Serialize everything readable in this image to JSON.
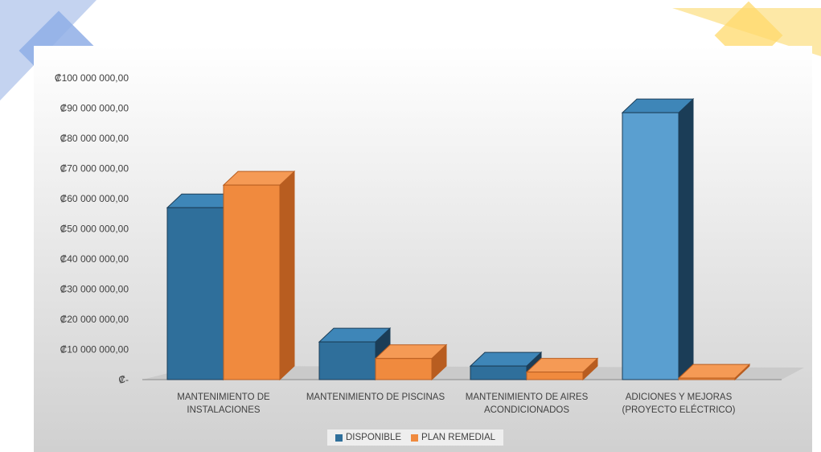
{
  "colors": {
    "disponible_front": "#2f6f9b",
    "disponible_side": "#1b3d57",
    "disponible_top": "#3e86b8",
    "disponible_tall_front": "#5a9fd0",
    "plan_front": "#f08a3e",
    "plan_side": "#b85d20",
    "plan_top": "#f59a55",
    "floor": "#c4c4c4",
    "axis_text": "#404040"
  },
  "chart_data": {
    "type": "bar",
    "title": "",
    "xlabel": "",
    "ylabel": "",
    "ylim": [
      0,
      100000000
    ],
    "y_ticks": [
      0,
      10000000,
      20000000,
      30000000,
      40000000,
      50000000,
      60000000,
      70000000,
      80000000,
      90000000,
      100000000
    ],
    "y_tick_labels": [
      "₡-",
      "₡10 000 000,00",
      "₡20 000 000,00",
      "₡30 000 000,00",
      "₡40 000 000,00",
      "₡50 000 000,00",
      "₡60 000 000,00",
      "₡70 000 000,00",
      "₡80 000 000,00",
      "₡90 000 000,00",
      "₡100 000 000,00"
    ],
    "categories": [
      [
        "MANTENIMIENTO DE",
        "INSTALACIONES"
      ],
      [
        "MANTENIMIENTO DE PISCINAS"
      ],
      [
        "MANTENIMIENTO DE AIRES",
        "ACONDICIONADOS"
      ],
      [
        "ADICIONES Y MEJORAS",
        "(PROYECTO ELÉCTRICO)"
      ]
    ],
    "series": [
      {
        "name": "DISPONIBLE",
        "values": [
          57000000,
          12500000,
          4500000,
          88500000
        ]
      },
      {
        "name": "PLAN REMEDIAL",
        "values": [
          64500000,
          7000000,
          2500000,
          500000
        ]
      }
    ],
    "grid": false,
    "legend": "bottom"
  }
}
